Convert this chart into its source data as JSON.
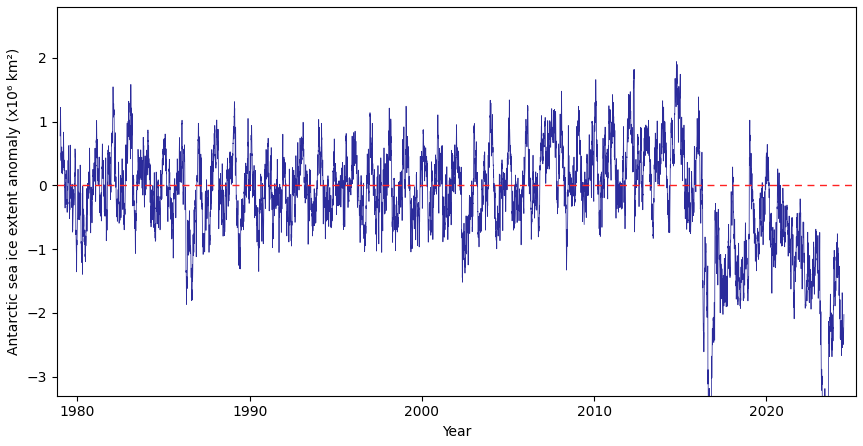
{
  "line_color": "#2b2b9b",
  "ref_line_color": "#ff2222",
  "ref_line_style": "dashed",
  "xlabel": "Year",
  "ylabel": "Antarctic sea ice extent anomaly (x10⁶ km²)",
  "xlim": [
    1978.8,
    2025.2
  ],
  "ylim": [
    -3.3,
    2.8
  ],
  "yticks": [
    -3,
    -2,
    -1,
    0,
    1,
    2
  ],
  "xticks": [
    1980,
    1990,
    2000,
    2010,
    2020
  ],
  "line_width": 0.55,
  "figsize": [
    8.63,
    4.46
  ],
  "dpi": 100,
  "background_color": "#ffffff",
  "tick_label_size": 10,
  "axis_label_size": 10
}
